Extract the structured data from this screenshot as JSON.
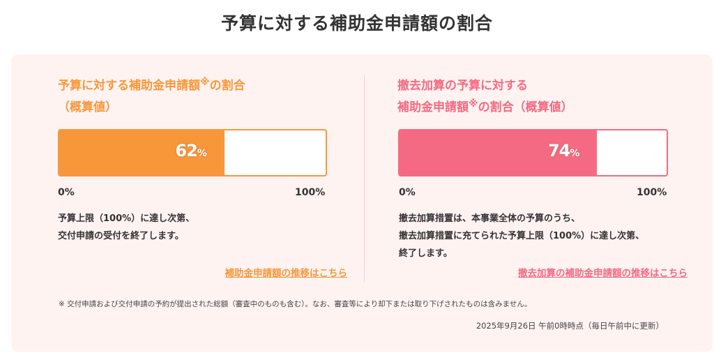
{
  "page": {
    "title": "予算に対する補助金申請額の割合"
  },
  "left_card": {
    "title_line1": "予算に対する補助金申請額",
    "title_note_mark": "※",
    "title_line1_tail": "の割合",
    "title_line2": "（概算値）",
    "percent_value": "62",
    "percent_unit": "%",
    "fill_fraction": 0.62,
    "scale_min": "0%",
    "scale_max": "100%",
    "description": [
      "予算上限（100%）に達し次第、",
      "交付申請の受付を終了します。"
    ],
    "link_text": "補助金申請額の推移はこちら"
  },
  "right_card": {
    "title_line1": "撤去加算の予算に対する",
    "title_line2": "補助金申請額",
    "title_note_mark": "※",
    "title_line2_tail": "の割合（概算値）",
    "percent_value": "74",
    "percent_unit": "%",
    "fill_fraction": 0.74,
    "scale_min": "0%",
    "scale_max": "100%",
    "description": [
      "撤去加算措置は、本事業全体の予算のうち、",
      "撤去加算措置に充てられた予算上限（100%）に達し次第、",
      "終了します。"
    ],
    "link_text": "撤去加算の補助金申請額の推移はこちら"
  },
  "footnote": "※  交付申請および交付申請の予約が提出された総額（審査中のものも含む）。なお、審査等により却下または取り下げされたものは含みません。",
  "timestamp": "2025年9月26日 午前0時時点（毎日午前中に更新）",
  "colors": {
    "orange_accent": "#f7973a",
    "pink_accent": "#f46a82",
    "panel_background": "#fff3f2"
  }
}
